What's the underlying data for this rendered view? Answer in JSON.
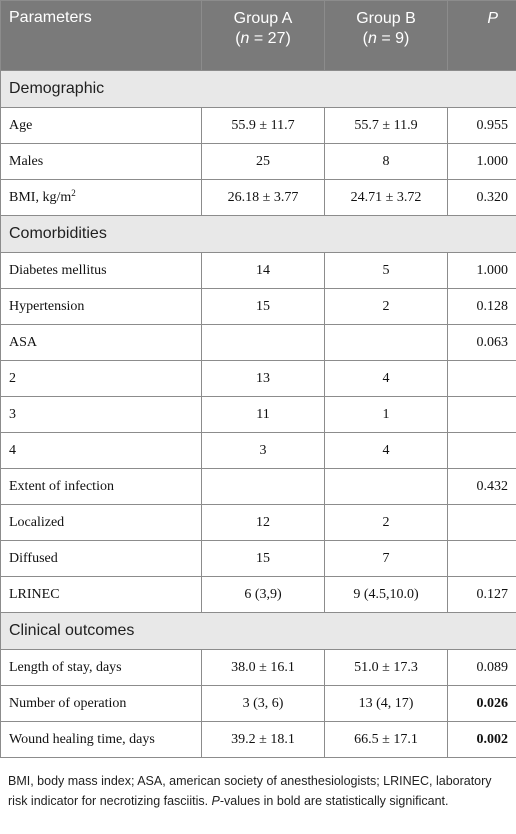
{
  "header": {
    "parameters": "Parameters",
    "group_a": "Group A",
    "group_a_n_prefix": "(",
    "group_a_n_italic": "n",
    "group_a_n_suffix": " = 27)",
    "group_b": "Group B",
    "group_b_n_prefix": "(",
    "group_b_n_italic": "n",
    "group_b_n_suffix": " = 9)",
    "p": "P"
  },
  "sections": {
    "demographic": "Demographic",
    "comorbidities": "Comorbidities",
    "clinical": "Clinical outcomes"
  },
  "rows": {
    "age": {
      "label": "Age",
      "a": "55.9 ± 11.7",
      "b": "55.7 ± 11.9",
      "p": "0.955"
    },
    "males": {
      "label": "Males",
      "a": "25",
      "b": "8",
      "p": "1.000"
    },
    "bmi": {
      "label": "BMI, kg/m",
      "sup": "2",
      "a": "26.18 ± 3.77",
      "b": "24.71 ± 3.72",
      "p": "0.320"
    },
    "dm": {
      "label": "Diabetes mellitus",
      "a": "14",
      "b": "5",
      "p": "1.000"
    },
    "htn": {
      "label": "Hypertension",
      "a": "15",
      "b": "2",
      "p": "0.128"
    },
    "asa": {
      "label": "ASA",
      "a": "",
      "b": "",
      "p": "0.063"
    },
    "asa2": {
      "label": "2",
      "a": "13",
      "b": "4",
      "p": ""
    },
    "asa3": {
      "label": "3",
      "a": "11",
      "b": "1",
      "p": ""
    },
    "asa4": {
      "label": "4",
      "a": "3",
      "b": "4",
      "p": ""
    },
    "extent": {
      "label": "Extent of infection",
      "a": "",
      "b": "",
      "p": "0.432"
    },
    "localized": {
      "label": "Localized",
      "a": "12",
      "b": "2",
      "p": ""
    },
    "diffused": {
      "label": "Diffused",
      "a": "15",
      "b": "7",
      "p": ""
    },
    "lrinec": {
      "label": "LRINEC",
      "a": "6 (3,9)",
      "b": "9 (4.5,10.0)",
      "p": "0.127"
    },
    "los": {
      "label": "Length of stay, days",
      "a": "38.0 ± 16.1",
      "b": "51.0 ± 17.3",
      "p": "0.089"
    },
    "ops": {
      "label": "Number of operation",
      "a": "3 (3, 6)",
      "b": "13 (4, 17)",
      "p": "0.026"
    },
    "wound": {
      "label": "Wound healing time, days",
      "a": "39.2 ± 18.1",
      "b": "66.5 ± 17.1",
      "p": "0.002"
    }
  },
  "footnote": {
    "part1": "BMI, body mass index; ASA, american society of anesthesiologists; LRINEC, laboratory risk indicator for necrotizing fasciitis. ",
    "p_italic": "P",
    "part2": "-values in bold are statistically significant."
  }
}
